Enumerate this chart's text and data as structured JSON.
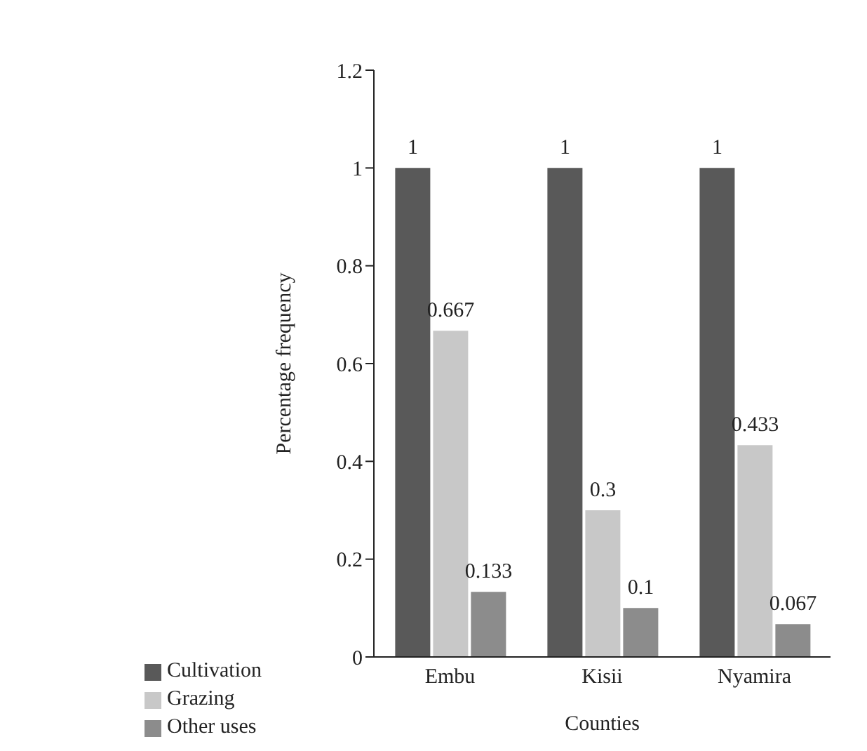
{
  "chart_data": {
    "type": "bar",
    "xlabel": "Counties",
    "ylabel": "Percentage frequency",
    "categories": [
      "Embu",
      "Kisii",
      "Nyamira"
    ],
    "series": [
      {
        "name": "Cultivation",
        "color": "#595959",
        "values": [
          1,
          1,
          1
        ]
      },
      {
        "name": "Grazing",
        "color": "#c8c8c8",
        "values": [
          0.667,
          0.3,
          0.433
        ]
      },
      {
        "name": "Other uses",
        "color": "#8c8c8c",
        "values": [
          0.133,
          0.1,
          0.067
        ]
      }
    ],
    "ylim": [
      0,
      1.2
    ],
    "yticks": [
      0,
      0.2,
      0.4,
      0.6,
      0.8,
      1,
      1.2
    ],
    "grid": false,
    "legend": "bottom left",
    "data_labels": true
  }
}
